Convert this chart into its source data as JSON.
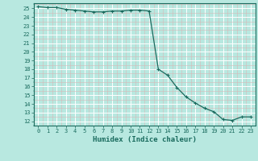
{
  "x": [
    0,
    1,
    2,
    3,
    4,
    5,
    6,
    7,
    8,
    9,
    10,
    11,
    12,
    13,
    14,
    15,
    16,
    17,
    18,
    19,
    20,
    21,
    22,
    23
  ],
  "y": [
    25.2,
    25.1,
    25.1,
    24.9,
    24.8,
    24.7,
    24.6,
    24.6,
    24.7,
    24.7,
    24.8,
    24.8,
    24.7,
    18.0,
    17.3,
    15.9,
    14.8,
    14.1,
    13.5,
    13.1,
    12.2,
    12.1,
    12.5,
    12.5
  ],
  "line_color": "#1a6b5e",
  "marker": "+",
  "bg_color": "#b8e8e0",
  "grid_major_color": "#ffffff",
  "grid_minor_color": "#d8b8b8",
  "xlabel": "Humidex (Indice chaleur)",
  "xlim": [
    -0.5,
    23.5
  ],
  "ylim": [
    11.5,
    25.6
  ],
  "yticks": [
    12,
    13,
    14,
    15,
    16,
    17,
    18,
    19,
    20,
    21,
    22,
    23,
    24,
    25
  ],
  "xticks": [
    0,
    1,
    2,
    3,
    4,
    5,
    6,
    7,
    8,
    9,
    10,
    11,
    12,
    13,
    14,
    15,
    16,
    17,
    18,
    19,
    20,
    21,
    22,
    23
  ],
  "tick_fontsize": 5.0,
  "label_fontsize": 6.5,
  "line_width": 0.9,
  "marker_size": 2.5
}
